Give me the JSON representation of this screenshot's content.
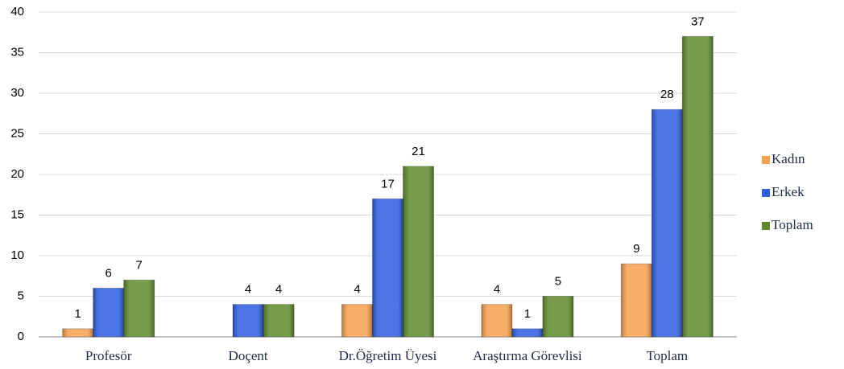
{
  "chart_data": {
    "type": "bar",
    "categories": [
      "Profesör",
      "Doçent",
      "Dr.Öğretim Üyesi",
      "Araştırma Görevlisi",
      "Toplam"
    ],
    "series": [
      {
        "name": "Kadın",
        "color": "#f5a04e",
        "values": [
          1,
          0,
          4,
          4,
          9
        ]
      },
      {
        "name": "Erkek",
        "color": "#2d5de0",
        "values": [
          6,
          4,
          17,
          1,
          28
        ]
      },
      {
        "name": "Toplam",
        "color": "#5f8a2c",
        "values": [
          7,
          4,
          21,
          5,
          37
        ]
      }
    ],
    "ylim": [
      0,
      40
    ],
    "yticks": [
      0,
      5,
      10,
      15,
      20,
      25,
      30,
      35,
      40
    ],
    "grid": true,
    "legend": "right"
  }
}
